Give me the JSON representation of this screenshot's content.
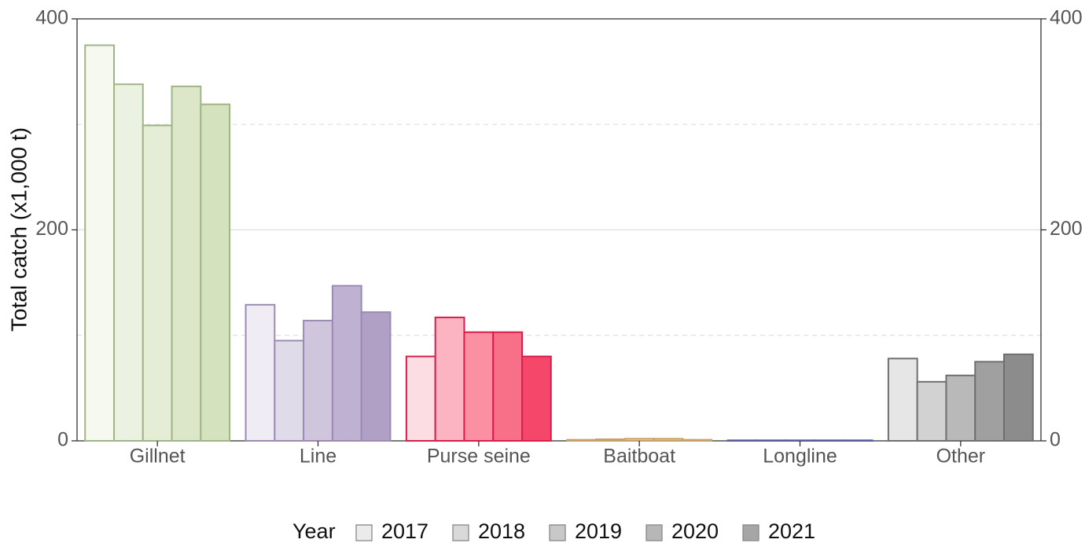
{
  "chart_data": {
    "type": "bar",
    "y_label": "Total catch (x1,000 t)",
    "legend_title": "Year",
    "categories": [
      "Gillnet",
      "Line",
      "Purse seine",
      "Baitboat",
      "Longline",
      "Other"
    ],
    "series": [
      {
        "name": "2017",
        "color": "#ebebeb",
        "values": [
          375,
          129,
          80,
          1,
          0.5,
          78
        ]
      },
      {
        "name": "2018",
        "color": "#d9d9d9",
        "values": [
          338,
          95,
          117,
          1.5,
          0.5,
          56
        ]
      },
      {
        "name": "2019",
        "color": "#c8c8c8",
        "values": [
          299,
          114,
          103,
          2,
          0.5,
          62
        ]
      },
      {
        "name": "2020",
        "color": "#b7b7b7",
        "values": [
          336,
          147,
          103,
          2,
          0.5,
          75
        ]
      },
      {
        "name": "2021",
        "color": "#a6a6a6",
        "values": [
          319,
          122,
          80,
          1,
          0.5,
          82
        ]
      }
    ],
    "category_palettes": [
      {
        "edge": "#a0b486",
        "fills": [
          "#f6f9f0",
          "#ecf2e2",
          "#e5edd6",
          "#dce7ca",
          "#d5e2be"
        ]
      },
      {
        "edge": "#9b8bb3",
        "fills": [
          "#efecf4",
          "#e0dbe9",
          "#cfc6dd",
          "#bfb1d2",
          "#b0a0c6"
        ]
      },
      {
        "edge": "#d6204b",
        "fills": [
          "#fddde4",
          "#fcb4c2",
          "#fb90a3",
          "#f86f88",
          "#f4476a"
        ]
      },
      {
        "edge": "#c8a06a",
        "fills": [
          "#fbf1e2",
          "#f7e3c7",
          "#f2d4ab",
          "#edc690",
          "#e8b775"
        ]
      },
      {
        "edge": "#5a5aa0",
        "fills": [
          "#ececf5",
          "#d8d8eb",
          "#c4c4e0",
          "#b0b0d6",
          "#9c9ccc"
        ]
      },
      {
        "edge": "#6f6f6f",
        "fills": [
          "#e6e6e6",
          "#d2d2d2",
          "#b9b9b9",
          "#a0a0a0",
          "#8c8c8c"
        ]
      }
    ],
    "ylim": [
      0,
      400
    ],
    "yticks": [
      0,
      200,
      400
    ],
    "y2lim": [
      0,
      400
    ],
    "y2ticks": [
      0,
      200,
      400
    ],
    "minor_grid": [
      100,
      300
    ],
    "grid": true,
    "legend_position": "bottom"
  }
}
